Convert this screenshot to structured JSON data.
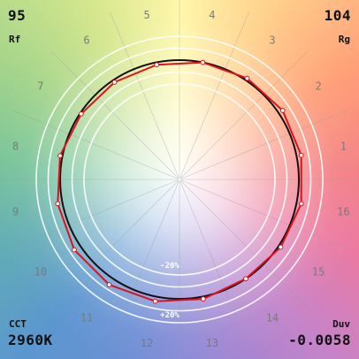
{
  "corners": {
    "rf_value": "95",
    "rf_label": "Rf",
    "rg_value": "104",
    "rg_label": "Rg",
    "cct_label": "CCT",
    "cct_value": "2960K",
    "duv_label": "Duv",
    "duv_value": "-0.0058"
  },
  "chart_data": {
    "type": "polar",
    "hue_bins": [
      "1",
      "2",
      "3",
      "4",
      "5",
      "6",
      "7",
      "8",
      "9",
      "10",
      "11",
      "12",
      "13",
      "14",
      "15",
      "16"
    ],
    "ring_labels": [
      "-20%",
      "+20%"
    ],
    "reference_ring_relative": [
      0.8,
      0.9,
      1.1,
      1.2
    ],
    "reference_radius": 1.0,
    "test_relative_radius": [
      1.04,
      1.04,
      1.02,
      1.0,
      0.98,
      0.98,
      0.99,
      1.02,
      1.04,
      1.06,
      1.06,
      1.04,
      1.02,
      1.0,
      1.02,
      1.04
    ],
    "colors": {
      "reference": "#111111",
      "test": "#e0101c",
      "rings": "#ffffff",
      "spokes": "#9c9c9c",
      "hue_labels": "#7a7a7a"
    }
  }
}
